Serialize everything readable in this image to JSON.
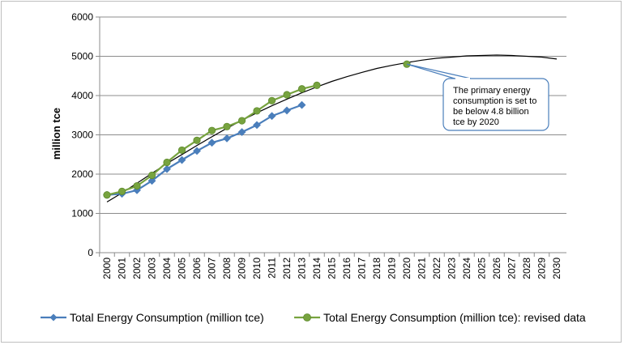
{
  "chart_data": {
    "type": "line",
    "title": "",
    "xlabel": "",
    "ylabel": "million tce",
    "xlim": [
      2000,
      2030
    ],
    "ylim": [
      0,
      6000
    ],
    "yticks": [
      0,
      1000,
      2000,
      3000,
      4000,
      5000,
      6000
    ],
    "categories": [
      "2000",
      "2001",
      "2002",
      "2003",
      "2004",
      "2005",
      "2006",
      "2007",
      "2008",
      "2009",
      "2010",
      "2011",
      "2012",
      "2013",
      "2014",
      "2015",
      "2016",
      "2017",
      "2018",
      "2019",
      "2020",
      "2021",
      "2022",
      "2023",
      "2024",
      "2025",
      "2026",
      "2027",
      "2028",
      "2029",
      "2030"
    ],
    "grid": "horizontal",
    "legend_position": "bottom",
    "series": [
      {
        "name": "Total Energy Consumption (million tce)",
        "color": "#4a7ebb",
        "marker": "diamond",
        "x": [
          2000,
          2001,
          2002,
          2003,
          2004,
          2005,
          2006,
          2007,
          2008,
          2009,
          2010,
          2011,
          2012,
          2013
        ],
        "values": [
          1470,
          1500,
          1590,
          1830,
          2130,
          2360,
          2590,
          2800,
          2910,
          3070,
          3250,
          3480,
          3620,
          3760
        ]
      },
      {
        "name": "Total Energy Consumption (million tce): revised data",
        "color": "#77a33f",
        "marker": "circle",
        "x": [
          2000,
          2001,
          2002,
          2003,
          2004,
          2005,
          2006,
          2007,
          2008,
          2009,
          2010,
          2011,
          2012,
          2013,
          2014,
          2020
        ],
        "values": [
          1470,
          1560,
          1700,
          1970,
          2300,
          2610,
          2860,
          3110,
          3210,
          3360,
          3610,
          3870,
          4020,
          4170,
          4260,
          4800
        ]
      }
    ],
    "trendline": {
      "type": "polynomial",
      "color": "#000000",
      "x": [
        2000,
        2001,
        2002,
        2003,
        2004,
        2005,
        2006,
        2007,
        2008,
        2009,
        2010,
        2011,
        2012,
        2013,
        2014,
        2015,
        2016,
        2017,
        2018,
        2019,
        2020,
        2021,
        2022,
        2023,
        2024,
        2025,
        2026,
        2027,
        2028,
        2029,
        2030
      ],
      "values": [
        1290,
        1520,
        1770,
        2020,
        2270,
        2500,
        2730,
        2950,
        3170,
        3370,
        3560,
        3740,
        3910,
        4070,
        4220,
        4360,
        4480,
        4590,
        4690,
        4770,
        4840,
        4900,
        4950,
        4980,
        5010,
        5020,
        5030,
        5020,
        5000,
        4980,
        4930
      ]
    },
    "annotation": {
      "text_lines": [
        "The primary energy",
        "consumption is set to",
        "be below 4.8 billion",
        "tce by 2020"
      ],
      "points_to": {
        "x": 2020,
        "y": 4800
      }
    }
  }
}
